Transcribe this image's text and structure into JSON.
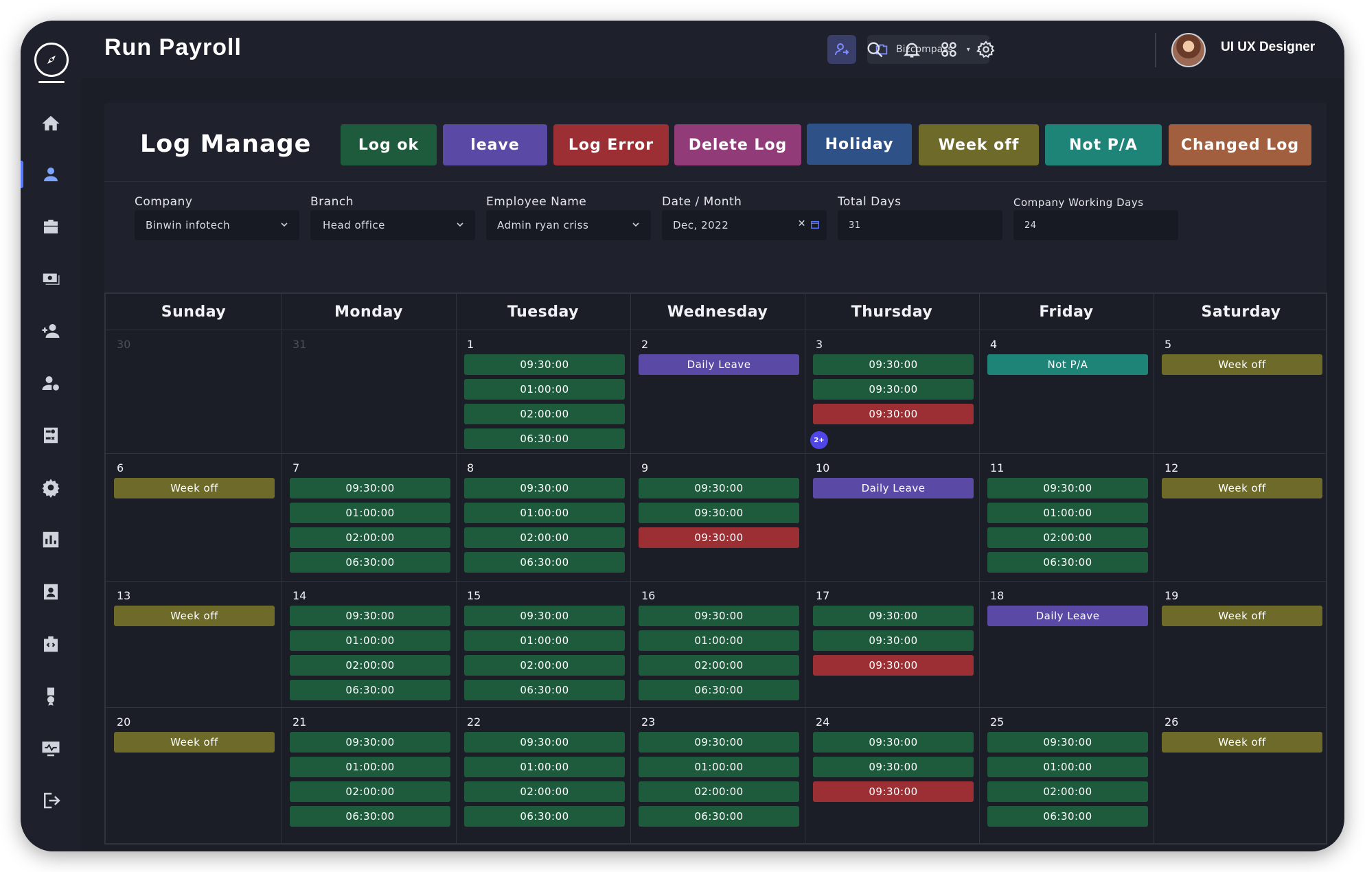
{
  "app": {
    "title": "Run Payroll"
  },
  "header": {
    "company_select": "Bizcompass",
    "user_name": "UI UX Designer"
  },
  "sidebar": {
    "items": [
      "home",
      "user",
      "briefcase",
      "money",
      "add-user",
      "user-settings",
      "calculator",
      "settings",
      "chart",
      "id-card",
      "code-case",
      "award",
      "monitor",
      "logout"
    ]
  },
  "page": {
    "title": "Log Manage"
  },
  "legend": [
    {
      "label": "Log ok",
      "color": "#1e5a3c"
    },
    {
      "label": "leave",
      "color": "#5a4aa6"
    },
    {
      "label": "Log Error",
      "color": "#9b2f33"
    },
    {
      "label": "Delete Log",
      "color": "#913c79"
    },
    {
      "label": "Holiday",
      "color": "#2e5288"
    },
    {
      "label": "Week off",
      "color": "#6d6a2a"
    },
    {
      "label": "Not P/A",
      "color": "#1f8478"
    },
    {
      "label": "Changed Log",
      "color": "#a15f3f"
    }
  ],
  "filters": {
    "company": {
      "label": "Company",
      "value": "Binwin infotech"
    },
    "branch": {
      "label": "Branch",
      "value": "Head office"
    },
    "employee": {
      "label": "Employee Name",
      "value": "Admin ryan criss"
    },
    "date": {
      "label": "Date / Month",
      "value": "Dec, 2022"
    },
    "total_days": {
      "label": "Total Days",
      "value": "31"
    },
    "working_days": {
      "label": "Company Working Days",
      "value": "24"
    }
  },
  "colors": {
    "ok": "#1e5a3c",
    "leave": "#5a4aa6",
    "error": "#9b2f33",
    "weekoff": "#6d6a2a",
    "notpa": "#1f8478"
  },
  "calendar": {
    "days": [
      "Sunday",
      "Monday",
      "Tuesday",
      "Wednesday",
      "Thursday",
      "Friday",
      "Saturday"
    ],
    "weeks": [
      [
        {
          "date": "30",
          "muted": true,
          "entries": []
        },
        {
          "date": "31",
          "muted": true,
          "entries": []
        },
        {
          "date": "1",
          "entries": [
            {
              "t": "09:30:00",
              "k": "ok"
            },
            {
              "t": "01:00:00",
              "k": "ok"
            },
            {
              "t": "02:00:00",
              "k": "ok"
            },
            {
              "t": "06:30:00",
              "k": "ok"
            }
          ]
        },
        {
          "date": "2",
          "entries": [
            {
              "t": "Daily Leave",
              "k": "leave"
            }
          ]
        },
        {
          "date": "3",
          "entries": [
            {
              "t": "09:30:00",
              "k": "ok"
            },
            {
              "t": "09:30:00",
              "k": "ok"
            },
            {
              "t": "09:30:00",
              "k": "error"
            }
          ],
          "more": "2+"
        },
        {
          "date": "4",
          "entries": [
            {
              "t": "Not P/A",
              "k": "notpa"
            }
          ]
        },
        {
          "date": "5",
          "entries": [
            {
              "t": "Week off",
              "k": "weekoff"
            }
          ]
        }
      ],
      [
        {
          "date": "6",
          "entries": [
            {
              "t": "Week off",
              "k": "weekoff"
            }
          ]
        },
        {
          "date": "7",
          "entries": [
            {
              "t": "09:30:00",
              "k": "ok"
            },
            {
              "t": "01:00:00",
              "k": "ok"
            },
            {
              "t": "02:00:00",
              "k": "ok"
            },
            {
              "t": "06:30:00",
              "k": "ok"
            }
          ]
        },
        {
          "date": "8",
          "entries": [
            {
              "t": "09:30:00",
              "k": "ok"
            },
            {
              "t": "01:00:00",
              "k": "ok"
            },
            {
              "t": "02:00:00",
              "k": "ok"
            },
            {
              "t": "06:30:00",
              "k": "ok"
            }
          ]
        },
        {
          "date": "9",
          "entries": [
            {
              "t": "09:30:00",
              "k": "ok"
            },
            {
              "t": "09:30:00",
              "k": "ok"
            },
            {
              "t": "09:30:00",
              "k": "error"
            }
          ]
        },
        {
          "date": "10",
          "entries": [
            {
              "t": "Daily Leave",
              "k": "leave"
            }
          ]
        },
        {
          "date": "11",
          "entries": [
            {
              "t": "09:30:00",
              "k": "ok"
            },
            {
              "t": "01:00:00",
              "k": "ok"
            },
            {
              "t": "02:00:00",
              "k": "ok"
            },
            {
              "t": "06:30:00",
              "k": "ok"
            }
          ]
        },
        {
          "date": "12",
          "entries": [
            {
              "t": "Week off",
              "k": "weekoff"
            }
          ]
        }
      ],
      [
        {
          "date": "13",
          "entries": [
            {
              "t": "Week off",
              "k": "weekoff"
            }
          ]
        },
        {
          "date": "14",
          "entries": [
            {
              "t": "09:30:00",
              "k": "ok"
            },
            {
              "t": "01:00:00",
              "k": "ok"
            },
            {
              "t": "02:00:00",
              "k": "ok"
            },
            {
              "t": "06:30:00",
              "k": "ok"
            }
          ]
        },
        {
          "date": "15",
          "entries": [
            {
              "t": "09:30:00",
              "k": "ok"
            },
            {
              "t": "01:00:00",
              "k": "ok"
            },
            {
              "t": "02:00:00",
              "k": "ok"
            },
            {
              "t": "06:30:00",
              "k": "ok"
            }
          ]
        },
        {
          "date": "16",
          "entries": [
            {
              "t": "09:30:00",
              "k": "ok"
            },
            {
              "t": "01:00:00",
              "k": "ok"
            },
            {
              "t": "02:00:00",
              "k": "ok"
            },
            {
              "t": "06:30:00",
              "k": "ok"
            }
          ]
        },
        {
          "date": "17",
          "entries": [
            {
              "t": "09:30:00",
              "k": "ok"
            },
            {
              "t": "09:30:00",
              "k": "ok"
            },
            {
              "t": "09:30:00",
              "k": "error"
            }
          ]
        },
        {
          "date": "18",
          "entries": [
            {
              "t": "Daily Leave",
              "k": "leave"
            }
          ]
        },
        {
          "date": "19",
          "entries": [
            {
              "t": "Week off",
              "k": "weekoff"
            }
          ]
        }
      ],
      [
        {
          "date": "20",
          "entries": [
            {
              "t": "Week off",
              "k": "weekoff"
            }
          ]
        },
        {
          "date": "21",
          "entries": [
            {
              "t": "09:30:00",
              "k": "ok"
            },
            {
              "t": "01:00:00",
              "k": "ok"
            },
            {
              "t": "02:00:00",
              "k": "ok"
            },
            {
              "t": "06:30:00",
              "k": "ok"
            }
          ]
        },
        {
          "date": "22",
          "entries": [
            {
              "t": "09:30:00",
              "k": "ok"
            },
            {
              "t": "01:00:00",
              "k": "ok"
            },
            {
              "t": "02:00:00",
              "k": "ok"
            },
            {
              "t": "06:30:00",
              "k": "ok"
            }
          ]
        },
        {
          "date": "23",
          "entries": [
            {
              "t": "09:30:00",
              "k": "ok"
            },
            {
              "t": "01:00:00",
              "k": "ok"
            },
            {
              "t": "02:00:00",
              "k": "ok"
            },
            {
              "t": "06:30:00",
              "k": "ok"
            }
          ]
        },
        {
          "date": "24",
          "entries": [
            {
              "t": "09:30:00",
              "k": "ok"
            },
            {
              "t": "09:30:00",
              "k": "ok"
            },
            {
              "t": "09:30:00",
              "k": "error"
            }
          ]
        },
        {
          "date": "25",
          "entries": [
            {
              "t": "09:30:00",
              "k": "ok"
            },
            {
              "t": "01:00:00",
              "k": "ok"
            },
            {
              "t": "02:00:00",
              "k": "ok"
            },
            {
              "t": "06:30:00",
              "k": "ok"
            }
          ]
        },
        {
          "date": "26",
          "entries": [
            {
              "t": "Week off",
              "k": "weekoff"
            }
          ]
        }
      ]
    ]
  }
}
